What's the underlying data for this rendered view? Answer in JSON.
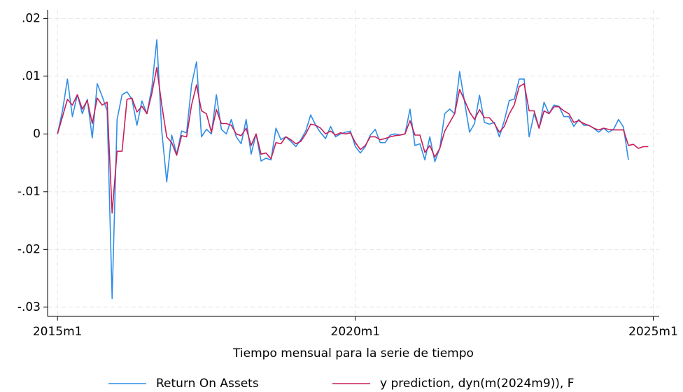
{
  "chart_data": {
    "type": "line",
    "x": [
      660,
      661,
      662,
      663,
      664,
      665,
      666,
      667,
      668,
      669,
      670,
      671,
      672,
      673,
      674,
      675,
      676,
      677,
      678,
      679,
      680,
      681,
      682,
      683,
      684,
      685,
      686,
      687,
      688,
      689,
      690,
      691,
      692,
      693,
      694,
      695,
      696,
      697,
      698,
      699,
      700,
      701,
      702,
      703,
      704,
      705,
      706,
      707,
      708,
      709,
      710,
      711,
      712,
      713,
      714,
      715,
      716,
      717,
      718,
      719,
      720,
      721,
      722,
      723,
      724,
      725,
      726,
      727,
      728,
      729,
      730,
      731,
      732,
      733,
      734,
      735,
      736,
      737,
      738,
      739,
      740,
      741,
      742,
      743,
      744,
      745,
      746,
      747,
      748,
      749,
      750,
      751,
      752,
      753,
      754,
      755,
      756,
      757,
      758,
      759,
      760,
      761,
      762,
      763,
      764,
      765,
      766,
      767,
      768,
      769,
      770,
      771,
      772,
      773,
      774,
      775,
      776,
      777,
      778,
      779
    ],
    "series": [
      {
        "name": "Return On Assets",
        "color": "#2f8ee6",
        "values": [
          0,
          0.004,
          0.0095,
          0.003,
          0.0068,
          0.0035,
          0.006,
          -0.0007,
          0.0087,
          0.0065,
          0.004,
          -0.0285,
          0.0025,
          0.0068,
          0.0073,
          0.006,
          0.0015,
          0.0057,
          0.0035,
          0.008,
          0.0163,
          0.0005,
          -0.0083,
          -0.0002,
          -0.0035,
          0.0005,
          0.0002,
          0.0085,
          0.0125,
          -0.0005,
          0.0008,
          0,
          0.0068,
          0.0008,
          0,
          0.0025,
          -0.0005,
          -0.0017,
          0.0025,
          -0.0035,
          0,
          -0.0047,
          -0.0042,
          -0.0045,
          0.001,
          -0.001,
          -0.0005,
          -0.0013,
          -0.0022,
          -0.001,
          0.0005,
          0.0033,
          0.0015,
          0.0002,
          -0.0008,
          0.0013,
          -0.0005,
          0,
          0.0003,
          0.0005,
          -0.0022,
          -0.0033,
          -0.0022,
          -0.0002,
          0.0008,
          -0.0015,
          -0.0015,
          -0.0002,
          0,
          -0.0002,
          0,
          0.0043,
          -0.002,
          -0.0017,
          -0.0045,
          -0.0005,
          -0.0048,
          -0.0025,
          0.0035,
          0.0043,
          0.0035,
          0.0108,
          0.0055,
          0.0003,
          0.0018,
          0.0067,
          0.002,
          0.0017,
          0.002,
          -0.0005,
          0.0023,
          0.0058,
          0.006,
          0.0095,
          0.0095,
          -0.0005,
          0.0035,
          0.001,
          0.0055,
          0.0035,
          0.005,
          0.0048,
          0.003,
          0.003,
          0.0013,
          0.0025,
          0.0015,
          0.0015,
          0.001,
          0.0003,
          0.001,
          0.0003,
          0.0008,
          0.0025,
          0.0012,
          -0.0045,
          null,
          null,
          null,
          null
        ]
      },
      {
        "name": "y prediction, dyn(m(2024m9)), F",
        "color": "#c81e5a",
        "values": [
          0,
          0.003,
          0.006,
          0.005,
          0.0068,
          0.0043,
          0.0058,
          0.0018,
          0.0062,
          0.005,
          0.0055,
          -0.0137,
          -0.003,
          -0.003,
          0.006,
          0.0062,
          0.0038,
          0.0048,
          0.0035,
          0.007,
          0.0115,
          0.005,
          -0.0005,
          -0.0015,
          -0.0037,
          -0.0003,
          -0.0005,
          0.005,
          0.0085,
          0.004,
          0.0035,
          0.0003,
          0.0042,
          0.0018,
          0.0018,
          0.0015,
          0,
          -0.0003,
          0.001,
          -0.002,
          0,
          -0.0035,
          -0.0033,
          -0.0043,
          -0.0015,
          -0.0017,
          -0.0005,
          -0.001,
          -0.0017,
          -0.0013,
          0,
          0.0017,
          0.0015,
          0.001,
          0,
          0.0005,
          -0.0002,
          0.0002,
          0,
          0.0002,
          -0.0015,
          -0.0027,
          -0.002,
          -0.0005,
          -0.0005,
          -0.001,
          -0.0008,
          -0.0005,
          -0.0003,
          -0.0002,
          0,
          0.0023,
          -0.0002,
          -0.0002,
          -0.0032,
          -0.002,
          -0.004,
          -0.0025,
          0.0005,
          0.002,
          0.0035,
          0.0077,
          0.0058,
          0.0038,
          0.0025,
          0.0042,
          0.0028,
          0.0028,
          0.0018,
          0.0003,
          0.0013,
          0.0035,
          0.005,
          0.0082,
          0.0087,
          0.004,
          0.004,
          0.001,
          0.004,
          0.0035,
          0.0047,
          0.0047,
          0.004,
          0.0035,
          0.002,
          0.0023,
          0.0018,
          0.0015,
          0.001,
          0.0007,
          0.001,
          0.0008,
          0.0007,
          0.0007,
          0.0007,
          -0.002,
          -0.0018,
          -0.0025,
          -0.0022,
          -0.0022
        ]
      }
    ],
    "x_label": "Tiempo mensual para la serie de tiempo",
    "xlim": [
      658,
      781.2
    ],
    "xticks": [
      {
        "value": 660,
        "label": "2015m1"
      },
      {
        "value": 720,
        "label": "2020m1"
      },
      {
        "value": 780,
        "label": "2025m1"
      }
    ],
    "ylim": [
      -0.0316,
      0.0215
    ],
    "yticks": [
      {
        "value": 0.02,
        "label": ".02"
      },
      {
        "value": 0.01,
        "label": ".01"
      },
      0,
      {
        "value": -0.01,
        "label": "-.01"
      },
      {
        "value": -0.02,
        "label": "-.02"
      },
      {
        "value": -0.03,
        "label": "-.03"
      }
    ],
    "grid": true,
    "legend": "bottom"
  }
}
